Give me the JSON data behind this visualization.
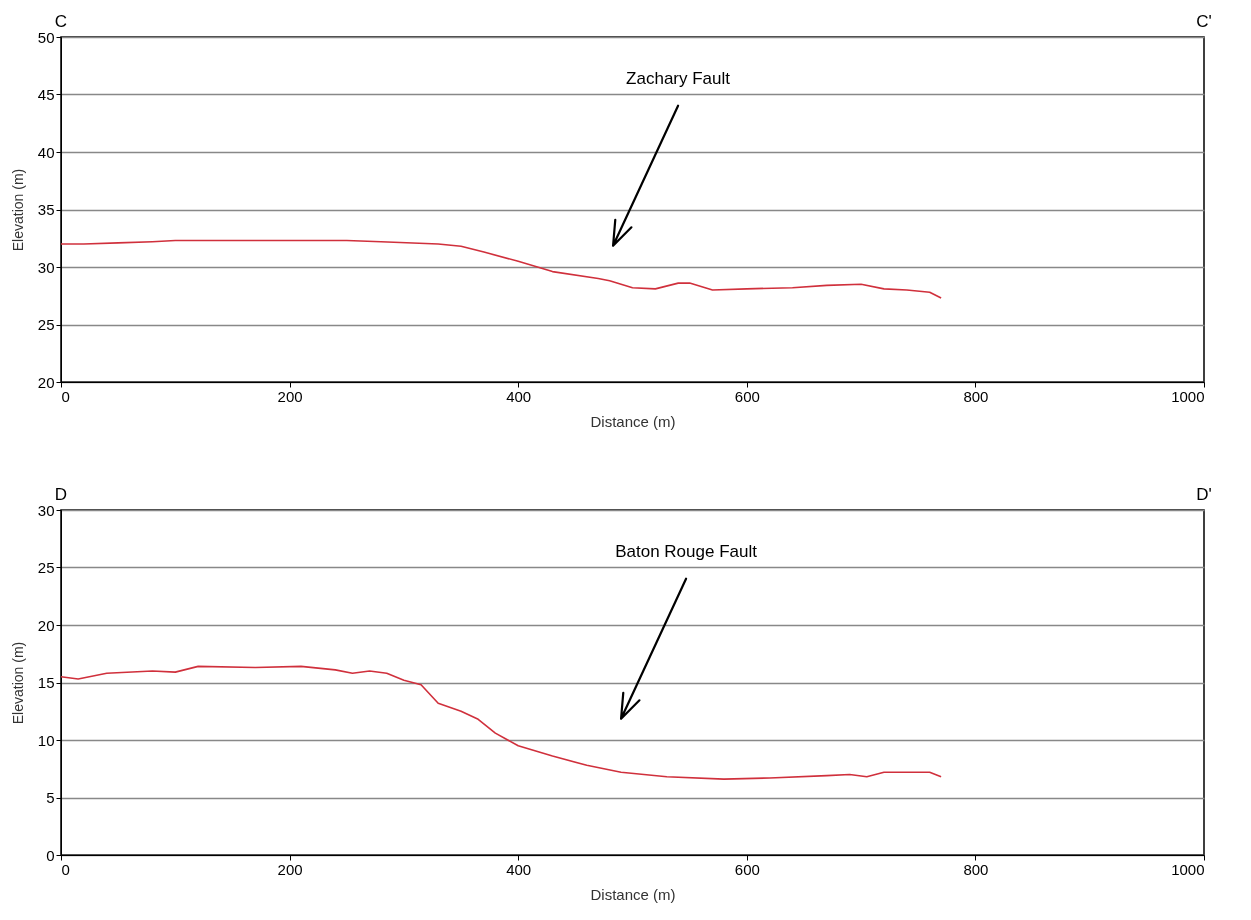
{
  "chart_data": [
    {
      "type": "line",
      "xlabel": "Distance (m)",
      "ylabel": "Elevation (m)",
      "xlim": [
        0,
        1000
      ],
      "ylim": [
        20,
        50
      ],
      "xticks": [
        0,
        200,
        400,
        600,
        800,
        1000
      ],
      "yticks": [
        20,
        25,
        30,
        35,
        40,
        45,
        50
      ],
      "grid": "y",
      "annotations": [
        "C",
        "C'",
        "Zachary Fault"
      ],
      "x": [
        0,
        20,
        50,
        80,
        100,
        130,
        160,
        200,
        250,
        280,
        330,
        350,
        370,
        400,
        430,
        470,
        480,
        500,
        520,
        540,
        550,
        570,
        600,
        640,
        670,
        700,
        720,
        740,
        760,
        770
      ],
      "series": [
        {
          "color": "#d0303c",
          "values": [
            32.0,
            32.0,
            32.1,
            32.2,
            32.3,
            32.3,
            32.3,
            32.3,
            32.3,
            32.2,
            32.0,
            31.8,
            31.3,
            30.5,
            29.6,
            29.0,
            28.8,
            28.2,
            28.1,
            28.6,
            28.6,
            28.0,
            28.1,
            28.2,
            28.4,
            28.5,
            28.1,
            28.0,
            27.8,
            27.3
          ]
        }
      ]
    },
    {
      "type": "line",
      "xlabel": "Distance (m)",
      "ylabel": "Elevation (m)",
      "xlim": [
        0,
        1000
      ],
      "ylim": [
        0,
        30
      ],
      "xticks": [
        0,
        200,
        400,
        600,
        800,
        1000
      ],
      "yticks": [
        0,
        5,
        10,
        15,
        20,
        25,
        30
      ],
      "grid": "y",
      "annotations": [
        "D",
        "D'",
        "Baton Rouge Fault"
      ],
      "x": [
        0,
        15,
        40,
        80,
        100,
        120,
        170,
        210,
        240,
        255,
        270,
        285,
        300,
        315,
        330,
        350,
        365,
        380,
        400,
        430,
        460,
        490,
        530,
        580,
        620,
        670,
        690,
        705,
        720,
        760,
        770
      ],
      "series": [
        {
          "color": "#d0303c",
          "values": [
            15.5,
            15.3,
            15.8,
            16.0,
            15.9,
            16.4,
            16.3,
            16.4,
            16.1,
            15.8,
            16.0,
            15.8,
            15.2,
            14.8,
            13.2,
            12.5,
            11.8,
            10.6,
            9.5,
            8.6,
            7.8,
            7.2,
            6.8,
            6.6,
            6.7,
            6.9,
            7.0,
            6.8,
            7.2,
            7.2,
            6.8
          ]
        }
      ]
    }
  ]
}
